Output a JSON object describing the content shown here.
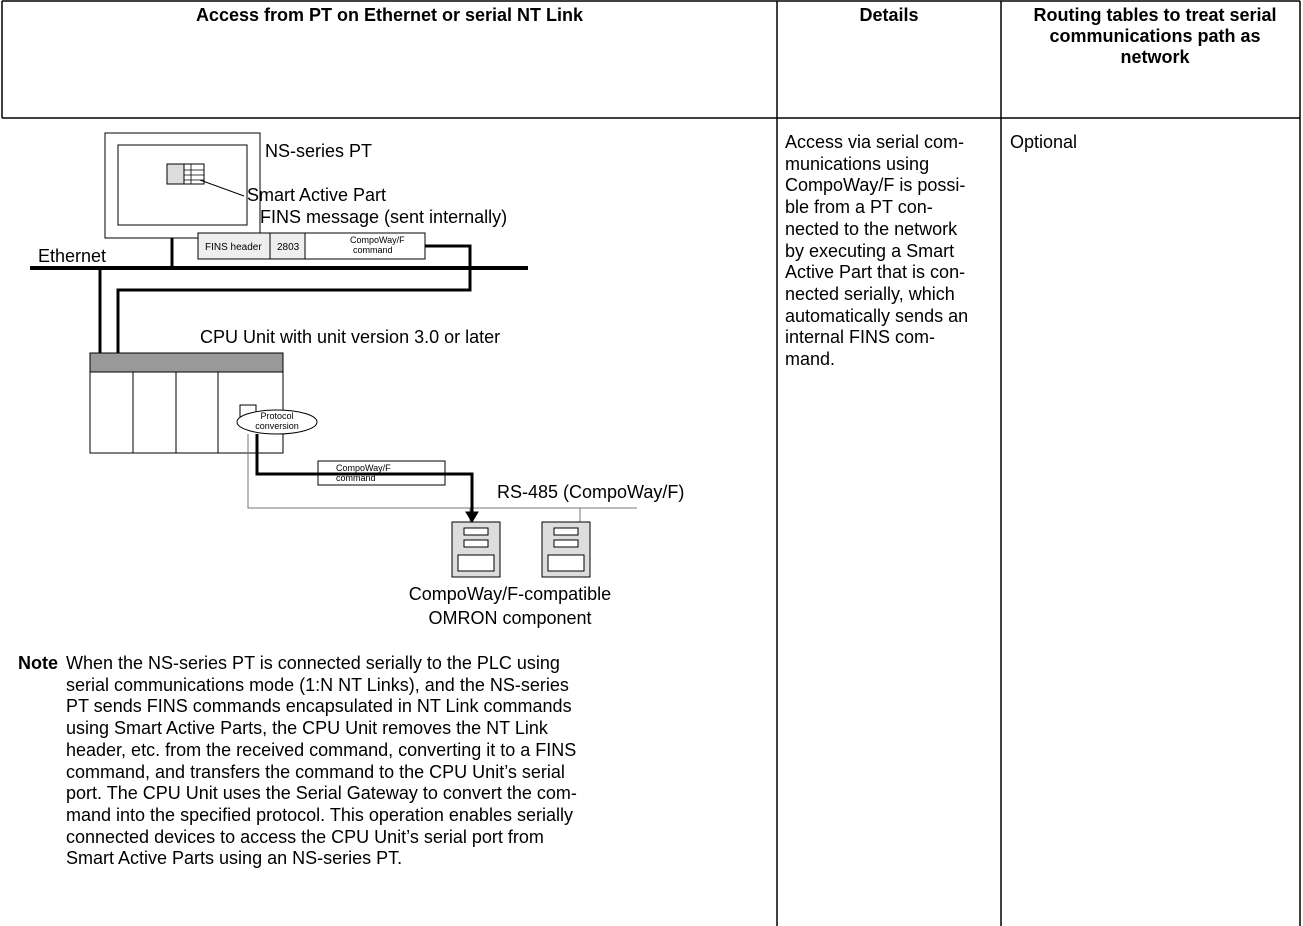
{
  "table": {
    "header": [
      "Access from PT on Ethernet or serial NT Link",
      "Details",
      "Routing tables to treat serial communications path as network"
    ],
    "diagram": {
      "pt_label": "NS-series PT",
      "smart_active_part": "Smart Active Part",
      "fins_message": "FINS message (sent internally)",
      "ethernet": "Ethernet",
      "fins_header": "FINS header",
      "code": "2803",
      "compoway_command": [
        "CompoWay/F",
        "command"
      ],
      "cpu_unit": "CPU Unit with unit version 3.0 or later",
      "protocol_conversion": [
        "Protocol",
        "conversion"
      ],
      "compoway_command_2": [
        "CompoWay/F",
        "command"
      ],
      "rs485": "RS-485 (CompoWay/F)",
      "component": [
        "CompoWay/F-compatible",
        "OMRON component"
      ]
    },
    "note_label": "Note",
    "note_lines": [
      "When the NS-series PT is connected serially to the PLC using",
      "serial communications mode (1:N NT Links), and the NS-series",
      "PT sends FINS commands encapsulated in NT Link commands",
      "using Smart Active Parts, the CPU Unit removes the NT Link",
      "header, etc. from the received command, converting it to a FINS",
      "command, and transfers the command to the CPU Unit’s serial",
      "port. The CPU Unit uses the Serial Gateway to convert the com-",
      "mand into the specified protocol. This operation enables serially",
      "connected devices to access the CPU Unit’s serial port from",
      "Smart Active Parts using an NS-series PT."
    ],
    "details_lines": [
      "Access via serial com-",
      "munications using",
      "CompoWay/F is possi-",
      "ble from a PT con-",
      "nected to the network",
      "by executing a Smart",
      "Active Part that is con-",
      "nected serially, which",
      "automatically sends an",
      "internal FINS com-",
      "mand."
    ],
    "routing": "Optional"
  }
}
